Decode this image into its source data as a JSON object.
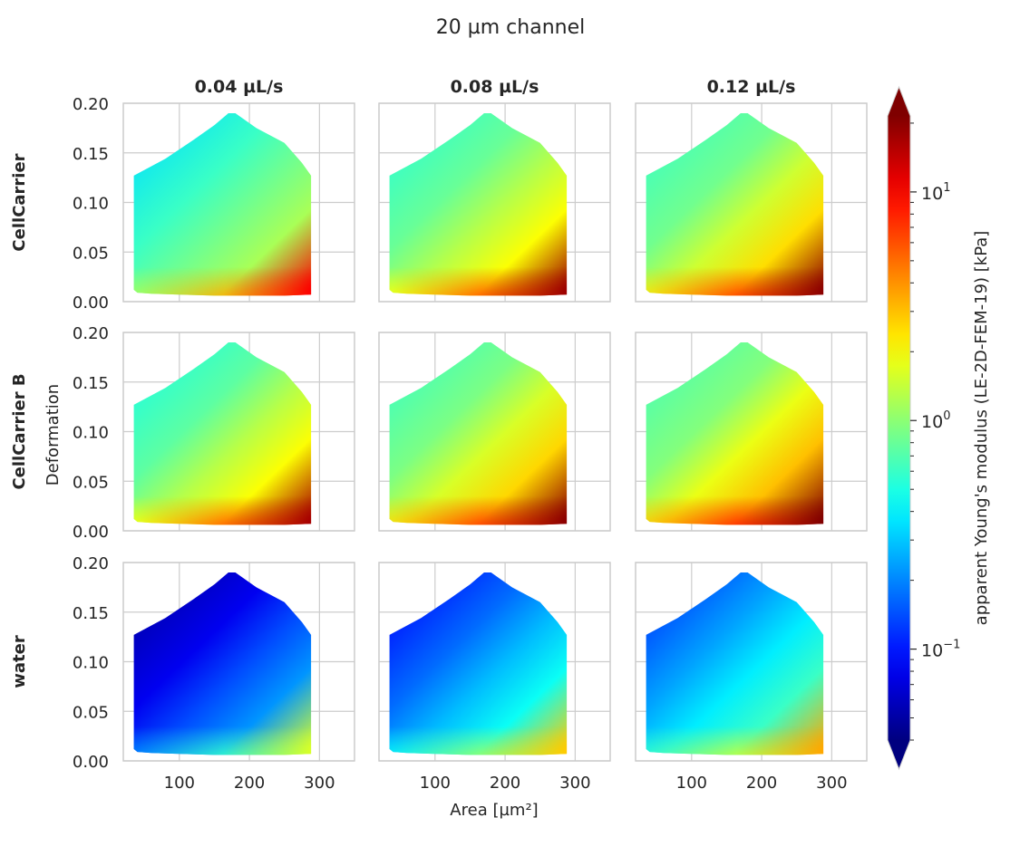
{
  "figure_title": "20 µm channel",
  "columns": [
    "0.04 µL/s",
    "0.08 µL/s",
    "0.12 µL/s"
  ],
  "rows": [
    "CellCarrier",
    "CellCarrier B",
    "water"
  ],
  "xlabel": "Area [µm²]",
  "ylabel": "Deformation",
  "x_ticks": [
    100,
    200,
    300
  ],
  "y_ticks": [
    "0.00",
    "0.05",
    "0.10",
    "0.15",
    "0.20"
  ],
  "colorbar": {
    "label": "apparent Young's modulus (LE-2D-FEM-19) [kPa]",
    "scale": "log",
    "colormap": "jet",
    "major_ticks": [
      {
        "value": 0.1,
        "base": "10",
        "exp": "−1"
      },
      {
        "value": 1,
        "base": "10",
        "exp": "0"
      },
      {
        "value": 10,
        "base": "10",
        "exp": "1"
      }
    ],
    "extend": "both",
    "colors": [
      "#00007f",
      "#0000ff",
      "#00d4ff",
      "#7dff7a",
      "#ffe600",
      "#ff1a00",
      "#7f0000"
    ]
  },
  "chart_data": {
    "type": "heatmap",
    "title": "20 µm channel",
    "xlabel": "Area [µm²]",
    "ylabel": "Deformation",
    "xlim": [
      20,
      350
    ],
    "ylim": [
      0,
      0.2
    ],
    "grid": true,
    "domain_outline": {
      "area": [
        35,
        80,
        120,
        150,
        170,
        180,
        210,
        250,
        275,
        288,
        288,
        250,
        200,
        150,
        100,
        60,
        40,
        35
      ],
      "deformation": [
        0.127,
        0.144,
        0.163,
        0.178,
        0.19,
        0.19,
        0.175,
        0.16,
        0.14,
        0.127,
        0.007,
        0.006,
        0.006,
        0.006,
        0.007,
        0.008,
        0.009,
        0.012
      ]
    },
    "log10_modulus_kPa": {
      "description": "approximate color-encoded apparent Young's modulus at sample points, per panel",
      "sample_points": [
        {
          "area": 40,
          "deformation": 0.1
        },
        {
          "area": 180,
          "deformation": 0.19
        },
        {
          "area": 280,
          "deformation": 0.1
        },
        {
          "area": 160,
          "deformation": 0.04
        },
        {
          "area": 280,
          "deformation": 0.008
        }
      ],
      "panels": [
        {
          "row": "CellCarrier",
          "column": "0.04 µL/s",
          "values_kPa": [
            0.35,
            0.6,
            0.85,
            1.2,
            10
          ]
        },
        {
          "row": "CellCarrier",
          "column": "0.08 µL/s",
          "values_kPa": [
            0.55,
            0.8,
            1.3,
            2.0,
            18
          ]
        },
        {
          "row": "CellCarrier",
          "column": "0.12 µL/s",
          "values_kPa": [
            0.6,
            0.85,
            1.5,
            2.5,
            20
          ]
        },
        {
          "row": "CellCarrier B",
          "column": "0.04 µL/s",
          "values_kPa": [
            0.5,
            0.75,
            1.3,
            2.0,
            17
          ]
        },
        {
          "row": "CellCarrier B",
          "column": "0.08 µL/s",
          "values_kPa": [
            0.6,
            0.9,
            1.6,
            2.6,
            20
          ]
        },
        {
          "row": "CellCarrier B",
          "column": "0.12 µL/s",
          "values_kPa": [
            0.65,
            0.95,
            1.8,
            3.0,
            22
          ]
        },
        {
          "row": "water",
          "column": "0.04 µL/s",
          "values_kPa": [
            0.05,
            0.08,
            0.14,
            0.22,
            1.6
          ]
        },
        {
          "row": "water",
          "column": "0.08 µL/s",
          "values_kPa": [
            0.09,
            0.17,
            0.28,
            0.45,
            2.8
          ]
        },
        {
          "row": "water",
          "column": "0.12 µL/s",
          "values_kPa": [
            0.12,
            0.24,
            0.38,
            0.6,
            3.5
          ]
        }
      ]
    }
  }
}
